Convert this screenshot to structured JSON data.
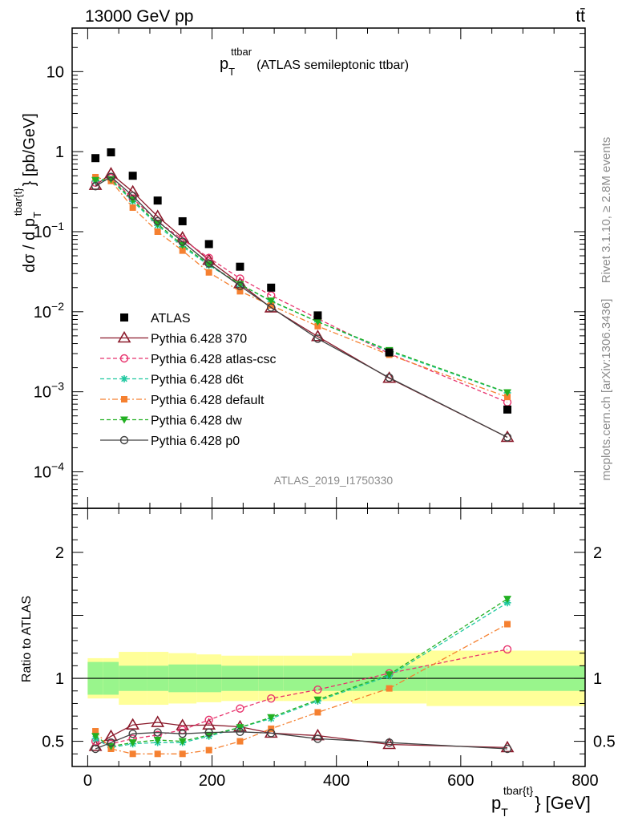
{
  "header": {
    "energy_label": "13000 GeV pp",
    "process_label": "tt̄"
  },
  "side_text": {
    "rivet": "Rivet 3.1.10, ≥ 2.8M events",
    "mcplots": "mcplots.cern.ch [arXiv:1306.3436]"
  },
  "analysis_label": "ATLAS_2019_I1750330",
  "colors": {
    "ATLAS": "#000000",
    "Pythia 6.428 370": "#8b1a2b",
    "Pythia 6.428 atlas-csc": "#e8336d",
    "Pythia 6.428 d6t": "#20c8a0",
    "Pythia 6.428 default": "#f58030",
    "Pythia 6.428 dw": "#22b022",
    "Pythia 6.428 p0": "#404040",
    "band_inner": "#99f58c",
    "band_outer": "#ffff99"
  },
  "chart_data": [
    {
      "type": "line",
      "panel": "main",
      "title": "p_T^{ttbar} (ATLAS semileptonic ttbar)",
      "title_main": "p",
      "title_sub": "T",
      "title_sup": "ttbar",
      "title_rest": "(ATLAS semileptonic ttbar)",
      "ylabel": "dσ / d p_T^{tbar{t}} [pb/GeV]",
      "ylabel_main": "dσ / d p",
      "ylabel_sub": "T",
      "ylabel_sup": "tbar{t}",
      "ylabel_rest": "} [pb/GeV]",
      "yscale": "log",
      "xlim": [
        -25,
        800
      ],
      "ylim": [
        3.5e-05,
        35
      ],
      "yticks": [
        {
          "v": 10,
          "m": "10",
          "e": ""
        },
        {
          "v": 1,
          "m": "1",
          "e": ""
        },
        {
          "v": 0.1,
          "m": "10",
          "e": "−1"
        },
        {
          "v": 0.01,
          "m": "10",
          "e": "−2"
        },
        {
          "v": 0.001,
          "m": "10",
          "e": "−3"
        },
        {
          "v": 0.0001,
          "m": "10",
          "e": "−4"
        }
      ],
      "legend_position": "bottom-left",
      "x": [
        12.5,
        37.5,
        72.5,
        112.5,
        152.5,
        195,
        245,
        295,
        370,
        485,
        675
      ],
      "data": {
        "name": "ATLAS",
        "values": [
          0.83,
          0.98,
          0.5,
          0.245,
          0.135,
          0.07,
          0.0365,
          0.02,
          0.009,
          0.0031,
          0.0006
        ]
      },
      "series": [
        {
          "name": "Pythia 6.428 370",
          "values": [
            0.38,
            0.53,
            0.315,
            0.155,
            0.084,
            0.044,
            0.0225,
            0.0112,
            0.0049,
            0.00148,
            0.00027
          ]
        },
        {
          "name": "Pythia 6.428 atlas-csc",
          "values": [
            0.41,
            0.47,
            0.26,
            0.135,
            0.08,
            0.047,
            0.026,
            0.016,
            0.0082,
            0.003,
            0.00074
          ]
        },
        {
          "name": "Pythia 6.428 d6t",
          "values": [
            0.43,
            0.44,
            0.24,
            0.12,
            0.065,
            0.038,
            0.022,
            0.0135,
            0.0075,
            0.0032,
            0.00097
          ]
        },
        {
          "name": "Pythia 6.428 default",
          "values": [
            0.48,
            0.43,
            0.2,
            0.1,
            0.058,
            0.031,
            0.018,
            0.012,
            0.0066,
            0.0029,
            0.00086
          ]
        },
        {
          "name": "Pythia 6.428 dw",
          "values": [
            0.44,
            0.45,
            0.25,
            0.125,
            0.068,
            0.039,
            0.022,
            0.0137,
            0.0075,
            0.0033,
            0.00098
          ]
        },
        {
          "name": "Pythia 6.428 p0",
          "values": [
            0.37,
            0.485,
            0.28,
            0.135,
            0.075,
            0.04,
            0.021,
            0.0113,
            0.0046,
            0.0015,
            0.00027
          ]
        }
      ]
    },
    {
      "type": "line",
      "panel": "ratio",
      "ylabel": "Ratio to ATLAS",
      "xlabel": "p_T^{tbar{t}} [GeV]",
      "xlabel_main": "p",
      "xlabel_sub": "T",
      "xlabel_sup": "tbar{t}",
      "xlabel_rest": "} [GeV]",
      "xlim": [
        -25,
        800
      ],
      "ylim": [
        0.3,
        2.35
      ],
      "xticks": [
        0,
        200,
        400,
        600,
        800
      ],
      "yticks": [
        0.5,
        1,
        2
      ],
      "bin_edges": [
        0,
        25,
        50,
        95,
        130,
        175,
        215,
        275,
        315,
        425,
        545,
        800
      ],
      "band_inner": [
        [
          0.87,
          1.13
        ],
        [
          0.87,
          1.13
        ],
        [
          0.9,
          1.1
        ],
        [
          0.9,
          1.1
        ],
        [
          0.89,
          1.11
        ],
        [
          0.89,
          1.11
        ],
        [
          0.9,
          1.1
        ],
        [
          0.9,
          1.1
        ],
        [
          0.9,
          1.1
        ],
        [
          0.9,
          1.1
        ],
        [
          0.9,
          1.1
        ]
      ],
      "band_outer": [
        [
          0.84,
          1.16
        ],
        [
          0.84,
          1.16
        ],
        [
          0.79,
          1.21
        ],
        [
          0.79,
          1.21
        ],
        [
          0.8,
          1.2
        ],
        [
          0.81,
          1.19
        ],
        [
          0.82,
          1.18
        ],
        [
          0.82,
          1.18
        ],
        [
          0.82,
          1.18
        ],
        [
          0.8,
          1.2
        ],
        [
          0.78,
          1.22
        ]
      ],
      "x": [
        12.5,
        37.5,
        72.5,
        112.5,
        152.5,
        195,
        245,
        295,
        370,
        485,
        675
      ],
      "series": [
        {
          "name": "Pythia 6.428 370",
          "values": [
            0.46,
            0.54,
            0.63,
            0.65,
            0.625,
            0.63,
            0.615,
            0.565,
            0.545,
            0.475,
            0.45
          ]
        },
        {
          "name": "Pythia 6.428 atlas-csc",
          "values": [
            0.5,
            0.48,
            0.52,
            0.55,
            0.59,
            0.67,
            0.76,
            0.84,
            0.91,
            1.04,
            1.23
          ]
        },
        {
          "name": "Pythia 6.428 d6t",
          "values": [
            0.52,
            0.45,
            0.48,
            0.49,
            0.49,
            0.54,
            0.61,
            0.68,
            0.82,
            1.02,
            1.6
          ]
        },
        {
          "name": "Pythia 6.428 default",
          "values": [
            0.58,
            0.44,
            0.4,
            0.4,
            0.4,
            0.43,
            0.5,
            0.6,
            0.73,
            0.92,
            1.43
          ]
        },
        {
          "name": "Pythia 6.428 dw",
          "values": [
            0.54,
            0.46,
            0.49,
            0.51,
            0.5,
            0.55,
            0.61,
            0.69,
            0.83,
            1.03,
            1.63
          ]
        },
        {
          "name": "Pythia 6.428 p0",
          "values": [
            0.44,
            0.49,
            0.56,
            0.57,
            0.56,
            0.57,
            0.575,
            0.565,
            0.52,
            0.49,
            0.44
          ]
        }
      ]
    }
  ]
}
